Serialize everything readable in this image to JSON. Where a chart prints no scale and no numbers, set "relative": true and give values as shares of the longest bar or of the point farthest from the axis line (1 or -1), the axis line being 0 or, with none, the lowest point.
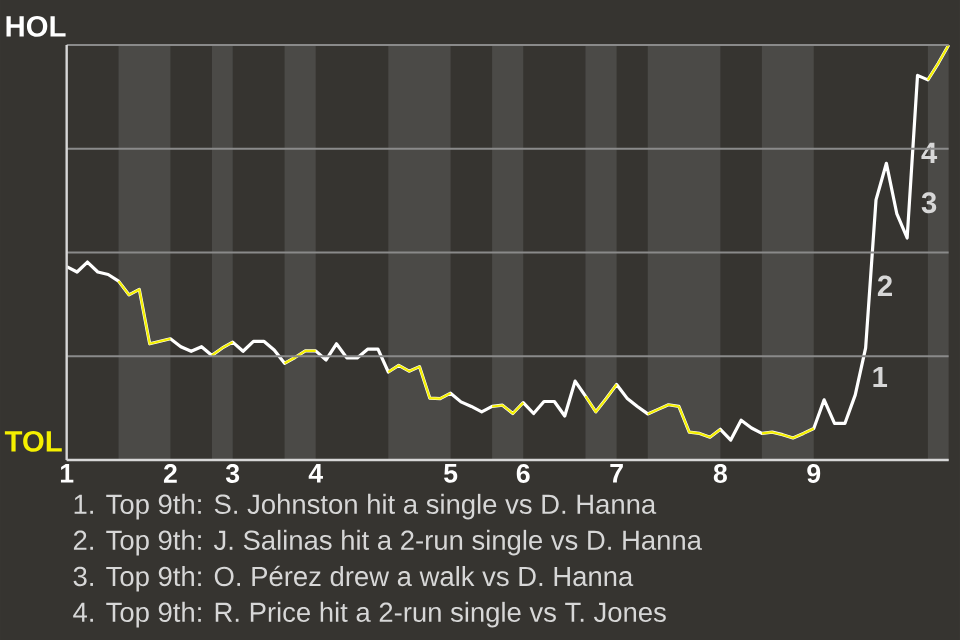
{
  "chart_data": {
    "type": "line",
    "relative": true,
    "categories": [
      "1",
      null,
      null,
      null,
      null,
      null,
      null,
      null,
      null,
      null,
      "2",
      null,
      null,
      null,
      null,
      null,
      "3",
      null,
      null,
      null,
      null,
      null,
      null,
      null,
      "4",
      null,
      null,
      null,
      null,
      null,
      null,
      null,
      null,
      null,
      null,
      null,
      null,
      "5",
      null,
      null,
      null,
      null,
      null,
      null,
      "6",
      null,
      null,
      null,
      null,
      null,
      null,
      null,
      null,
      "7",
      null,
      null,
      null,
      null,
      null,
      null,
      null,
      null,
      null,
      "8",
      null,
      null,
      null,
      null,
      null,
      null,
      null,
      null,
      "9",
      null,
      null,
      null,
      null,
      null,
      null,
      null,
      null,
      null,
      null,
      null,
      null,
      null
    ],
    "grid": "y",
    "marker": "none",
    "line_style": "solid",
    "series": [
      {
        "color": "#ffffff",
        "values": [
          0.466,
          0.453,
          0.477,
          0.453,
          0.447,
          0.431,
          0.398,
          0.411,
          0.28,
          0.286,
          0.292,
          0.273,
          0.262,
          0.273,
          0.252,
          0.27,
          0.284,
          0.262,
          0.286,
          0.286,
          0.265,
          0.233,
          0.247,
          0.263,
          0.263,
          0.241,
          0.28,
          0.246,
          0.246,
          0.267,
          0.267,
          0.212,
          0.228,
          0.214,
          0.225,
          0.149,
          0.148,
          0.161,
          0.14,
          0.129,
          0.116,
          0.129,
          0.132,
          0.112,
          0.138,
          0.112,
          0.141,
          0.141,
          0.106,
          0.19,
          0.154,
          0.116,
          0.148,
          0.182,
          0.149,
          0.129,
          0.111,
          0.122,
          0.133,
          0.129,
          0.067,
          0.064,
          0.055,
          0.074,
          0.048,
          0.096,
          0.077,
          0.064,
          0.067,
          0.061,
          0.053,
          0.064,
          0.076,
          0.145,
          0.088,
          0.088,
          0.157,
          0.27,
          0.627,
          0.715,
          0.594,
          0.535,
          0.927,
          0.916,
          0.956,
          1.0
        ],
        "colors": [
          "#ffffff",
          "#ffffff",
          "#ffffff",
          "#ffffff",
          "#ffffff",
          "#ffffff",
          "#f5f000",
          "#f5f000",
          "#f5f000",
          "#f5f000",
          "#f5f000",
          "#ffffff",
          "#ffffff",
          "#ffffff",
          "#ffffff",
          "#f5f000",
          "#f5f000",
          "#ffffff",
          "#ffffff",
          "#ffffff",
          "#ffffff",
          "#ffffff",
          "#f5f000",
          "#f5f000",
          "#f5f000",
          "#ffffff",
          "#ffffff",
          "#ffffff",
          "#ffffff",
          "#ffffff",
          "#ffffff",
          "#ffffff",
          "#f5f000",
          "#f5f000",
          "#f5f000",
          "#f5f000",
          "#f5f000",
          "#f5f000",
          "#ffffff",
          "#ffffff",
          "#ffffff",
          "#ffffff",
          "#f5f000",
          "#f5f000",
          "#f5f000",
          "#ffffff",
          "#ffffff",
          "#ffffff",
          "#ffffff",
          "#ffffff",
          "#ffffff",
          "#f5f000",
          "#f5f000",
          "#f5f000",
          "#ffffff",
          "#ffffff",
          "#ffffff",
          "#f5f000",
          "#f5f000",
          "#f5f000",
          "#f5f000",
          "#f5f000",
          "#f5f000",
          "#f5f000",
          "#ffffff",
          "#ffffff",
          "#ffffff",
          "#ffffff",
          "#f5f000",
          "#f5f000",
          "#f5f000",
          "#f5f000",
          "#f5f000",
          "#ffffff",
          "#ffffff",
          "#ffffff",
          "#ffffff",
          "#ffffff",
          "#ffffff",
          "#ffffff",
          "#ffffff",
          "#ffffff",
          "#ffffff",
          "#ffffff",
          "#f5f000",
          "#f5f000"
        ]
      }
    ],
    "annotations": [
      "HOL",
      "TOL",
      "1",
      "2",
      "3",
      "4",
      "1. Top 9th: S. Johnston hit a single vs D. Hanna",
      "2. Top 9th: J. Salinas hit a 2-run single vs D. Hanna",
      "3. Top 9th: O. Pérez drew a walk vs D. Hanna",
      "4. Top 9th: R. Price hit a 2-run single vs T. Jones"
    ]
  }
}
